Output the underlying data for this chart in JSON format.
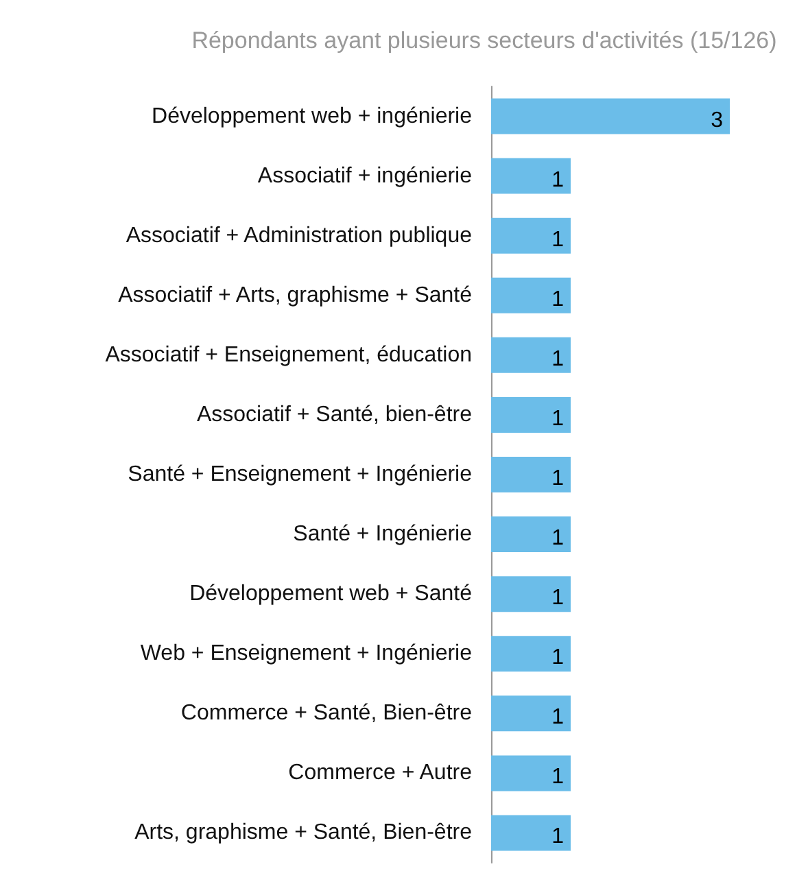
{
  "chart_data": {
    "type": "bar",
    "orientation": "horizontal",
    "title": "Répondants ayant plusieurs secteurs d'activités (15/126)",
    "categories": [
      "Développement web + ingénierie",
      "Associatif + ingénierie",
      "Associatif + Administration publique",
      "Associatif + Arts, graphisme + Santé",
      "Associatif + Enseignement, éducation",
      "Associatif + Santé, bien-être",
      "Santé + Enseignement + Ingénierie",
      "Santé + Ingénierie",
      "Développement web + Santé",
      "Web + Enseignement + Ingénierie",
      "Commerce + Santé, Bien-être",
      "Commerce + Autre",
      "Arts, graphisme + Santé, Bien-être"
    ],
    "values": [
      3,
      1,
      1,
      1,
      1,
      1,
      1,
      1,
      1,
      1,
      1,
      1,
      1
    ],
    "color": "#6bbde9",
    "data_labels": true
  }
}
